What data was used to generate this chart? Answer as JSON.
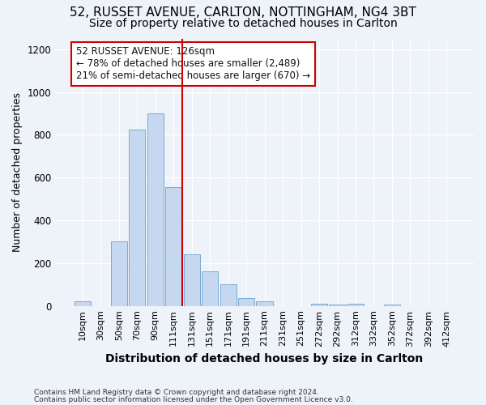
{
  "title1": "52, RUSSET AVENUE, CARLTON, NOTTINGHAM, NG4 3BT",
  "title2": "Size of property relative to detached houses in Carlton",
  "xlabel": "Distribution of detached houses by size in Carlton",
  "ylabel": "Number of detached properties",
  "categories": [
    "10sqm",
    "30sqm",
    "50sqm",
    "70sqm",
    "90sqm",
    "111sqm",
    "131sqm",
    "151sqm",
    "171sqm",
    "191sqm",
    "211sqm",
    "231sqm",
    "251sqm",
    "272sqm",
    "292sqm",
    "312sqm",
    "332sqm",
    "352sqm",
    "372sqm",
    "392sqm",
    "412sqm"
  ],
  "values": [
    20,
    0,
    300,
    825,
    900,
    555,
    240,
    160,
    100,
    35,
    20,
    0,
    0,
    10,
    5,
    10,
    0,
    5,
    0,
    0,
    0
  ],
  "bar_color": "#c5d8f0",
  "bar_edge_color": "#7aaad4",
  "highlight_color": "#cc0000",
  "red_line_x": 5.5,
  "annotation_text": "52 RUSSET AVENUE: 126sqm\n← 78% of detached houses are smaller (2,489)\n21% of semi-detached houses are larger (670) →",
  "annotation_box_color": "#ffffff",
  "annotation_box_edge_color": "#cc0000",
  "ylim": [
    0,
    1250
  ],
  "yticks": [
    0,
    200,
    400,
    600,
    800,
    1000,
    1200
  ],
  "footer1": "Contains HM Land Registry data © Crown copyright and database right 2024.",
  "footer2": "Contains public sector information licensed under the Open Government Licence v3.0.",
  "bg_color": "#eef2f9",
  "grid_color": "#ffffff",
  "title1_fontsize": 11,
  "title2_fontsize": 10,
  "xlabel_fontsize": 10,
  "ylabel_fontsize": 9
}
